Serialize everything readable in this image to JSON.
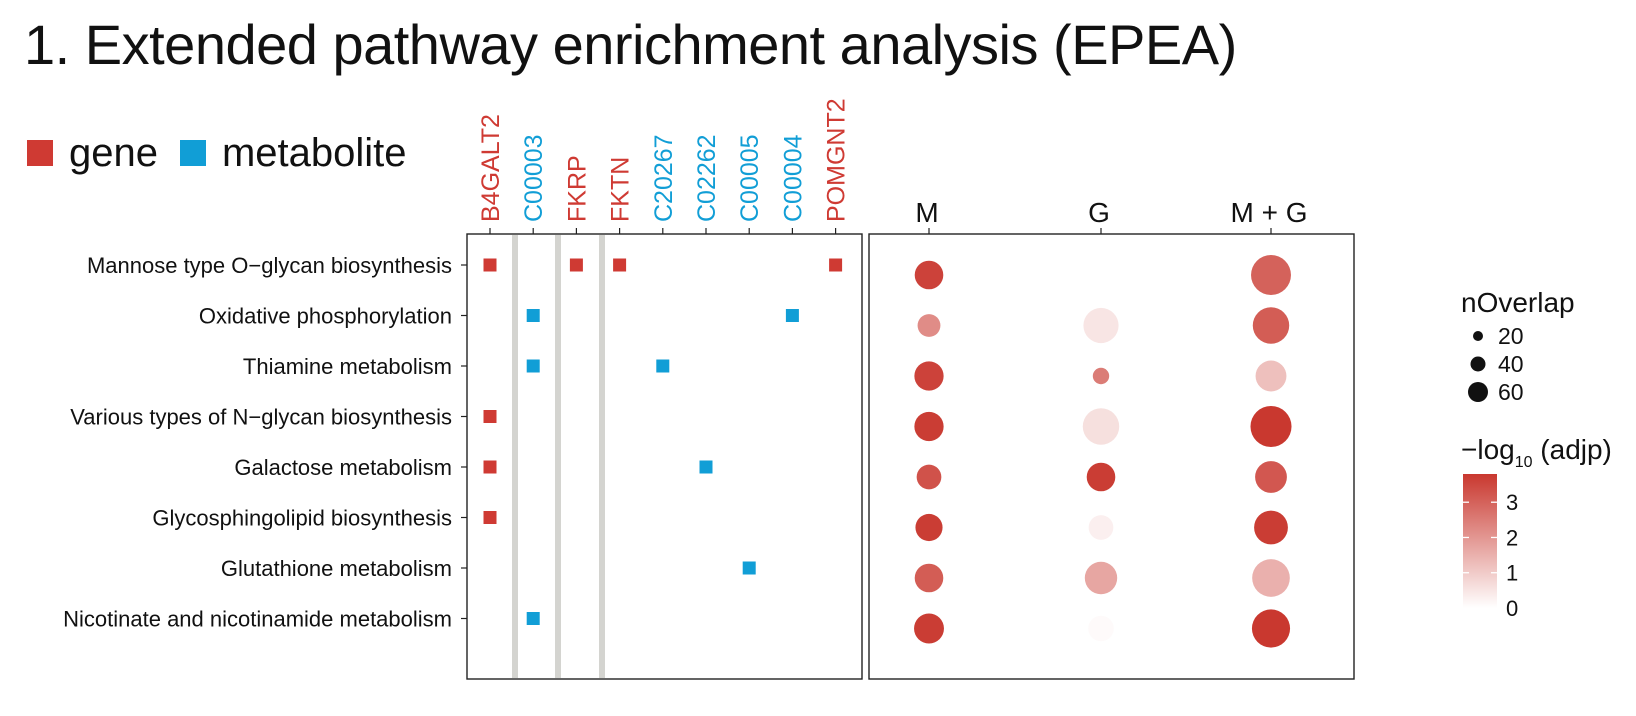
{
  "title": "1. Extended pathway enrichment analysis (EPEA)",
  "colors": {
    "gene": "#cf3a33",
    "metabolite": "#119ed6",
    "scale_low": "#ffffff",
    "scale_high": "#c9382f",
    "separator": "#d4d4d0",
    "frame": "#222222"
  },
  "type_legend": [
    {
      "label": "gene",
      "color": "#cf3a33"
    },
    {
      "label": "metabolite",
      "color": "#119ed6"
    }
  ],
  "chart_data": [
    {
      "type": "heatmap",
      "title": "",
      "columns": [
        {
          "label": "B4GALT2",
          "kind": "gene"
        },
        {
          "label": "C00003",
          "kind": "metabolite"
        },
        {
          "label": "FKRP",
          "kind": "gene"
        },
        {
          "label": "FKTN",
          "kind": "gene"
        },
        {
          "label": "C20267",
          "kind": "metabolite"
        },
        {
          "label": "C02262",
          "kind": "metabolite"
        },
        {
          "label": "C00005",
          "kind": "metabolite"
        },
        {
          "label": "C00004",
          "kind": "metabolite"
        },
        {
          "label": "POMGNT2",
          "kind": "gene"
        }
      ],
      "rows": [
        "Mannose type O−glycan biosynthesis",
        "Oxidative phosphorylation",
        "Thiamine metabolism",
        "Various types of N−glycan biosynthesis",
        "Galactose metabolism",
        "Glycosphingolipid biosynthesis",
        "Glutathione metabolism",
        "Nicotinate and nicotinamide metabolism"
      ],
      "membership": [
        {
          "row": 0,
          "col": 0
        },
        {
          "row": 0,
          "col": 2
        },
        {
          "row": 0,
          "col": 3
        },
        {
          "row": 0,
          "col": 8
        },
        {
          "row": 1,
          "col": 1
        },
        {
          "row": 1,
          "col": 7
        },
        {
          "row": 2,
          "col": 1
        },
        {
          "row": 2,
          "col": 4
        },
        {
          "row": 3,
          "col": 0
        },
        {
          "row": 4,
          "col": 0
        },
        {
          "row": 4,
          "col": 5
        },
        {
          "row": 5,
          "col": 0
        },
        {
          "row": 6,
          "col": 6
        },
        {
          "row": 7,
          "col": 1
        }
      ]
    },
    {
      "type": "scatter",
      "title": "",
      "categories": [
        "M",
        "G",
        "M + G"
      ],
      "size_variable": "nOverlap",
      "color_variable": "−log10 (adjp)",
      "points": [
        {
          "row": 0,
          "cat": 0,
          "nOverlap": 28,
          "neglog10": 3.6
        },
        {
          "row": 0,
          "cat": 1,
          "nOverlap": 5,
          "neglog10": 0.0
        },
        {
          "row": 0,
          "cat": 2,
          "nOverlap": 70,
          "neglog10": 3.0
        },
        {
          "row": 1,
          "cat": 0,
          "nOverlap": 14,
          "neglog10": 2.2
        },
        {
          "row": 1,
          "cat": 1,
          "nOverlap": 50,
          "neglog10": 0.5
        },
        {
          "row": 1,
          "cat": 2,
          "nOverlap": 55,
          "neglog10": 3.1
        },
        {
          "row": 2,
          "cat": 0,
          "nOverlap": 30,
          "neglog10": 3.6
        },
        {
          "row": 2,
          "cat": 1,
          "nOverlap": 4,
          "neglog10": 2.5
        },
        {
          "row": 2,
          "cat": 2,
          "nOverlap": 35,
          "neglog10": 1.2
        },
        {
          "row": 3,
          "cat": 0,
          "nOverlap": 30,
          "neglog10": 3.7
        },
        {
          "row": 3,
          "cat": 1,
          "nOverlap": 55,
          "neglog10": 0.6
        },
        {
          "row": 3,
          "cat": 2,
          "nOverlap": 75,
          "neglog10": 3.8
        },
        {
          "row": 4,
          "cat": 0,
          "nOverlap": 18,
          "neglog10": 3.3
        },
        {
          "row": 4,
          "cat": 1,
          "nOverlap": 28,
          "neglog10": 3.7
        },
        {
          "row": 4,
          "cat": 2,
          "nOverlap": 38,
          "neglog10": 3.2
        },
        {
          "row": 5,
          "cat": 0,
          "nOverlap": 24,
          "neglog10": 3.7
        },
        {
          "row": 5,
          "cat": 1,
          "nOverlap": 18,
          "neglog10": 0.3
        },
        {
          "row": 5,
          "cat": 2,
          "nOverlap": 45,
          "neglog10": 3.7
        },
        {
          "row": 6,
          "cat": 0,
          "nOverlap": 28,
          "neglog10": 3.1
        },
        {
          "row": 6,
          "cat": 1,
          "nOverlap": 40,
          "neglog10": 1.7
        },
        {
          "row": 6,
          "cat": 2,
          "nOverlap": 60,
          "neglog10": 1.5
        },
        {
          "row": 7,
          "cat": 0,
          "nOverlap": 32,
          "neglog10": 3.7
        },
        {
          "row": 7,
          "cat": 1,
          "nOverlap": 20,
          "neglog10": 0.1
        },
        {
          "row": 7,
          "cat": 2,
          "nOverlap": 62,
          "neglog10": 3.8
        }
      ],
      "legend_size": {
        "title": "nOverlap",
        "values": [
          20,
          40,
          60
        ]
      },
      "legend_color": {
        "title_main": "−log",
        "title_sub": "10",
        "title_tail": " (adjp)",
        "min": 0,
        "max": 3.8,
        "ticks": [
          0,
          1,
          2,
          3
        ]
      }
    }
  ]
}
